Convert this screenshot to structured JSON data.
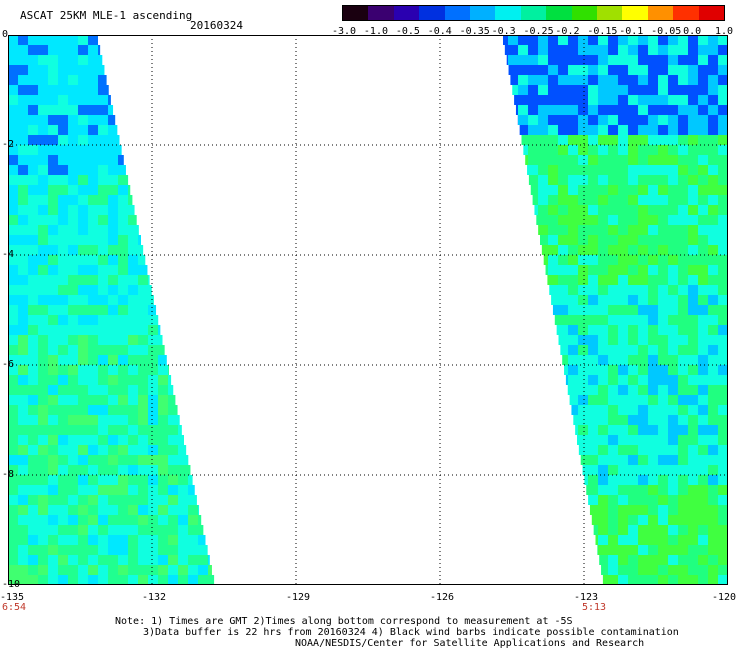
{
  "header": {
    "title": "ASCAT 25KM MLE-1 ascending",
    "date": "20160324"
  },
  "colorbar": {
    "labels": [
      "-3.0",
      "-1.0",
      "-0.5",
      "-0.4",
      "-0.35",
      "-0.3",
      "-0.25",
      "-0.2",
      "-0.15",
      "-0.1",
      "-0.05",
      "0.0",
      "1.0"
    ],
    "colors": [
      "#1a0010",
      "#3a0070",
      "#2a00b0",
      "#0030e0",
      "#0070ff",
      "#00b0ff",
      "#00f0f0",
      "#00f0a0",
      "#00e040",
      "#30e000",
      "#a0e000",
      "#ffff00",
      "#ff9000",
      "#ff3000",
      "#e00000"
    ]
  },
  "axes": {
    "y_ticks": [
      "0",
      "-2",
      "-4",
      "-6",
      "-8",
      "-10"
    ],
    "x_ticks": [
      "-135",
      "-132",
      "-129",
      "-126",
      "-123",
      "-120"
    ],
    "time_labels": [
      "6:54",
      "5:13"
    ]
  },
  "notes": {
    "line1": "Note: 1) Times are GMT 2)Times along bottom correspond to measurement at -5S",
    "line2": "3)Data buffer is 22 hrs from 20160324 4) Black wind barbs indicate possible contamination",
    "line3": "NOAA/NESDIS/Center for Satellite Applications and Research"
  },
  "map": {
    "lon_range": [
      -135,
      -120
    ],
    "lat_range": [
      -10,
      0
    ],
    "left_swath_colors": [
      "#00e8ff",
      "#10ffe0",
      "#20ff90",
      "#40ff70",
      "#0070ff"
    ],
    "right_swath_colors": [
      "#0050ff",
      "#10ffe0",
      "#20ff80",
      "#40ff40",
      "#00c8ff"
    ]
  }
}
